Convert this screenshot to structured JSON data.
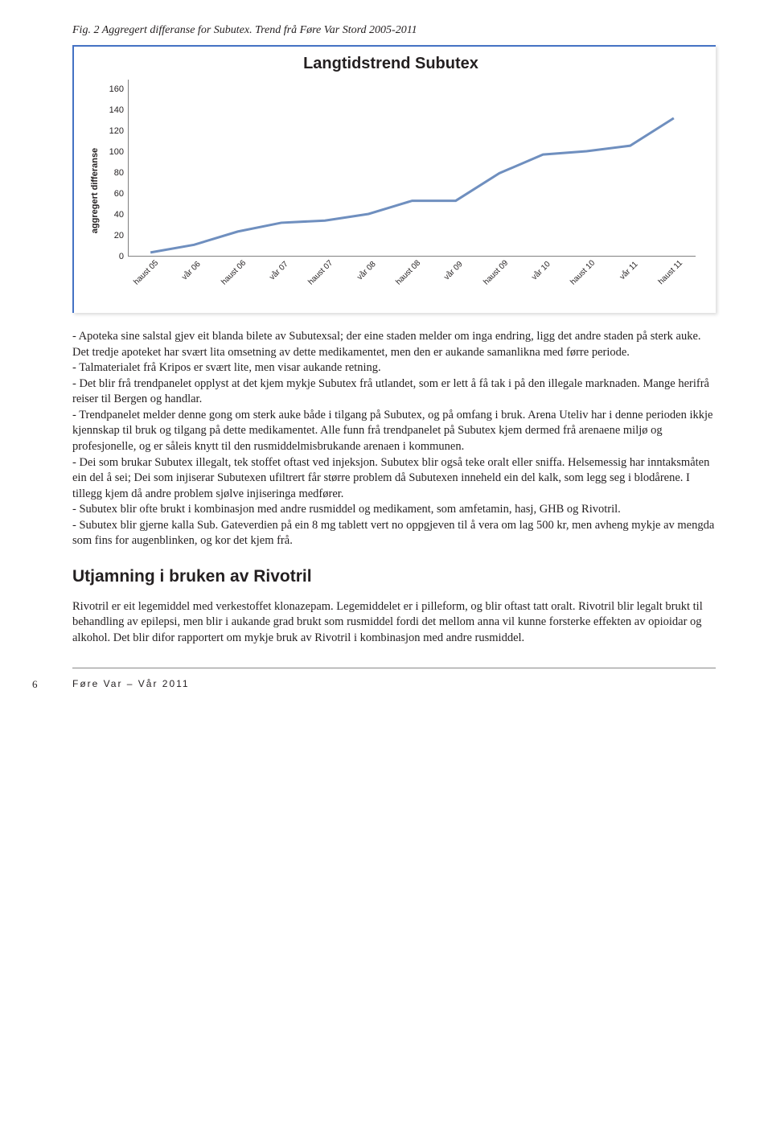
{
  "caption": "Fig. 2 Aggregert differanse for Subutex. Trend frå Føre Var Stord 2005-2011",
  "chart": {
    "type": "line",
    "title": "Langtidstrend Subutex",
    "ylabel": "aggregert differanse",
    "ylim": [
      0,
      160
    ],
    "ytick_step": 20,
    "yticks": [
      "0",
      "20",
      "40",
      "60",
      "80",
      "100",
      "120",
      "140",
      "160"
    ],
    "xticks": [
      "haust 05",
      "vår 06",
      "haust 06",
      "vår 07",
      "haust 07",
      "vår 08",
      "haust 08",
      "vår 09",
      "haust 09",
      "vår 10",
      "haust 10",
      "vår 11",
      "haust 11"
    ],
    "values": [
      3,
      10,
      22,
      30,
      32,
      38,
      50,
      50,
      75,
      92,
      95,
      100,
      125
    ],
    "line_color": "#6f8fbf",
    "line_width": 3,
    "axis_color": "#808080",
    "border_color": "#4472c4",
    "background": "#ffffff",
    "title_fontsize": 20,
    "label_fontsize": 11
  },
  "paragraphs": [
    "- Apoteka sine salstal gjev eit blanda bilete av Subutexsal; der eine staden melder om inga endring, ligg det andre staden på sterk auke. Det tredje apoteket har svært lita omsetning av dette medikamentet, men den er aukande samanlikna med førre periode.",
    "- Talmaterialet frå Kripos er svært lite, men visar aukande retning.",
    "- Det blir frå trendpanelet opplyst at det kjem mykje Subutex frå utlandet, som er lett å få tak i på den illegale marknaden. Mange herifrå reiser til Bergen og handlar.",
    "- Trendpanelet melder denne gong om sterk auke både i tilgang på Subutex, og på omfang i bruk. Arena Uteliv har i denne perioden ikkje kjennskap til bruk og tilgang på dette medikamentet. Alle funn frå trendpanelet på Subutex kjem dermed frå arenaene miljø og profesjonelle, og er såleis knytt til den rusmiddelmisbrukande arenaen i kommunen.",
    "- Dei som brukar Subutex illegalt, tek stoffet oftast ved injeksjon. Subutex blir også teke oralt eller sniffa. Helsemessig har inntaksmåten ein del å sei; Dei som injiserar Subutexen ufiltrert får større problem då Subutexen inneheld ein del kalk, som legg seg i blodårene. I tillegg kjem då andre problem sjølve injiseringa medfører.",
    "- Subutex blir ofte brukt i kombinasjon med andre rusmiddel og medikament, som amfetamin, hasj, GHB og Rivotril.",
    "- Subutex blir gjerne kalla Sub. Gateverdien på ein 8 mg tablett vert no oppgjeven til å vera om lag 500 kr, men avheng mykje av mengda som fins for augenblinken, og kor det kjem frå."
  ],
  "section_heading": "Utjamning i bruken av Rivotril",
  "section_body": "Rivotril er eit legemiddel med verkestoffet klonazepam. Legemiddelet er i pilleform, og blir oftast tatt oralt. Rivotril blir legalt brukt til behandling av epilepsi, men blir i aukande grad brukt som rusmiddel fordi det mellom anna vil kunne forsterke effekten av opioidar og alkohol. Det blir difor rapportert om mykje bruk av Rivotril i kombinasjon med andre rusmiddel.",
  "footer": {
    "pageno": "6",
    "text": "Føre Var – Vår 2011"
  }
}
